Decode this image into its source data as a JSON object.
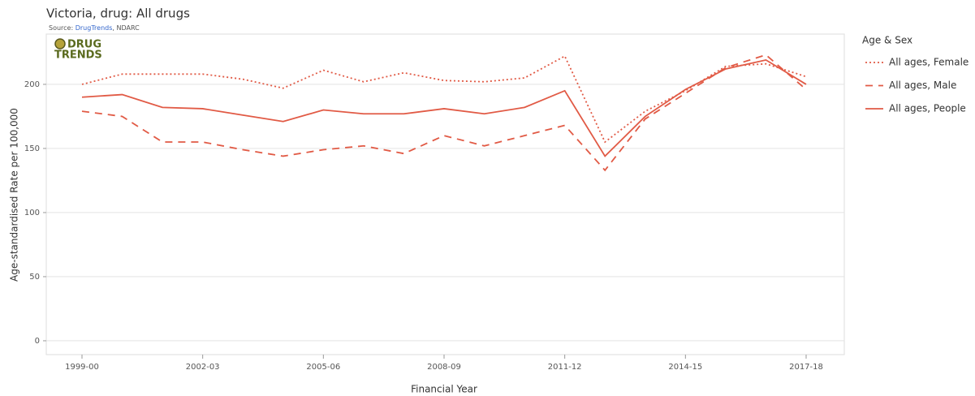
{
  "chart_data": {
    "type": "line",
    "title": "Victoria, drug: All drugs",
    "source": [
      "Source: ",
      "DrugTrends",
      ", NDARC"
    ],
    "logo": [
      "DRUG",
      "TRENDS"
    ],
    "x_label": "Financial Year",
    "y_label": "Age-standardised Rate per 100,000",
    "legend_title": "Age & Sex",
    "legend_position": "right",
    "grid": true,
    "categories": [
      "1999-00",
      null,
      null,
      "2002-03",
      null,
      null,
      "2005-06",
      null,
      null,
      "2008-09",
      null,
      null,
      "2011-12",
      null,
      null,
      "2014-15",
      null,
      null,
      "2017-18"
    ],
    "ylim": [
      -10.8,
      239.2
    ],
    "yticks": [
      0,
      50,
      100,
      150,
      200
    ],
    "series": [
      {
        "name": "All ages, Female",
        "color": "#e15a45",
        "dash": "dotted",
        "values": [
          200,
          208,
          208,
          208,
          204,
          197,
          211,
          202,
          209,
          203,
          202,
          205,
          222,
          155,
          179,
          195,
          214,
          216,
          206
        ]
      },
      {
        "name": "All ages, Male",
        "color": "#e15a45",
        "dash": "dashed",
        "values": [
          179,
          175,
          155,
          155,
          149,
          144,
          149,
          152,
          146,
          160,
          152,
          160,
          168,
          133,
          173,
          193,
          213,
          223,
          196
        ]
      },
      {
        "name": "All ages, People",
        "color": "#e15a45",
        "dash": "solid",
        "values": [
          190,
          192,
          182,
          181,
          176,
          171,
          180,
          177,
          177,
          181,
          177,
          182,
          195,
          144,
          175,
          196,
          212,
          219,
          200
        ]
      }
    ]
  }
}
